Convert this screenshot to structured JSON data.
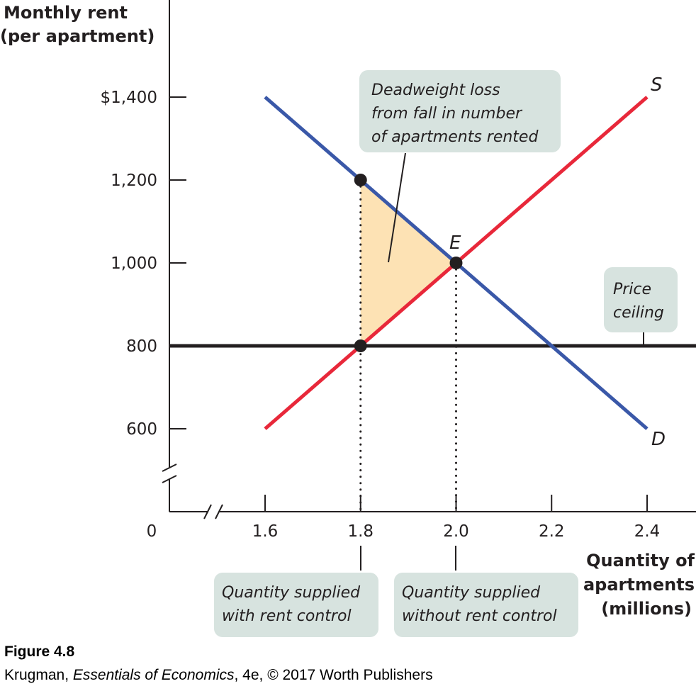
{
  "chart_data": {
    "type": "line",
    "ylabel": [
      "Monthly rent",
      "(per apartment)"
    ],
    "xlabel": [
      "Quantity of",
      "apartments",
      "(millions)"
    ],
    "y_ticks": [
      {
        "value": 1400,
        "label": "$1,400"
      },
      {
        "value": 1200,
        "label": "1,200"
      },
      {
        "value": 1000,
        "label": "1,000"
      },
      {
        "value": 800,
        "label": "800"
      },
      {
        "value": 600,
        "label": "600"
      }
    ],
    "x_ticks": [
      {
        "value": 1.6,
        "label": "1.6"
      },
      {
        "value": 1.8,
        "label": "1.8"
      },
      {
        "value": 2.0,
        "label": "2.0"
      },
      {
        "value": 2.2,
        "label": "2.2"
      },
      {
        "value": 2.4,
        "label": "2.4"
      }
    ],
    "origin_label": "0",
    "xlim": [
      1.6,
      2.5
    ],
    "ylim": [
      500,
      1400
    ],
    "axis_breaks": true,
    "series": [
      {
        "name": "D",
        "color": "#3a58a8",
        "x": [
          1.6,
          2.4
        ],
        "y": [
          1400,
          600
        ]
      },
      {
        "name": "S",
        "color": "#e8283a",
        "x": [
          1.6,
          2.4
        ],
        "y": [
          600,
          1400
        ]
      }
    ],
    "price_ceiling": {
      "y": 800,
      "color": "#231f20"
    },
    "points": [
      {
        "x": 1.8,
        "y": 1200
      },
      {
        "x": 2.0,
        "y": 1000,
        "label": "E"
      },
      {
        "x": 1.8,
        "y": 800
      }
    ],
    "deadweight_loss": {
      "vertices": [
        [
          1.8,
          1200
        ],
        [
          2.0,
          1000
        ],
        [
          1.8,
          800
        ]
      ],
      "color": "#fde2b4"
    },
    "dotted_lines": [
      {
        "x": 1.8,
        "from_y": 1200
      },
      {
        "x": 2.0,
        "from_y": 1000
      }
    ],
    "annotations": {
      "deadweight": [
        "Deadweight loss",
        "from fall in number",
        "of apartments rented"
      ],
      "ceiling": [
        "Price",
        "ceiling"
      ],
      "with_control": [
        "Quantity supplied",
        "with rent control"
      ],
      "without_control": [
        "Quantity supplied",
        "without rent control"
      ]
    }
  },
  "caption": {
    "figure": "Figure 4.8",
    "source_prefix": "Krugman, ",
    "source_title": "Essentials of Economics",
    "source_suffix": ", 4e, © 2017 Worth Publishers"
  }
}
